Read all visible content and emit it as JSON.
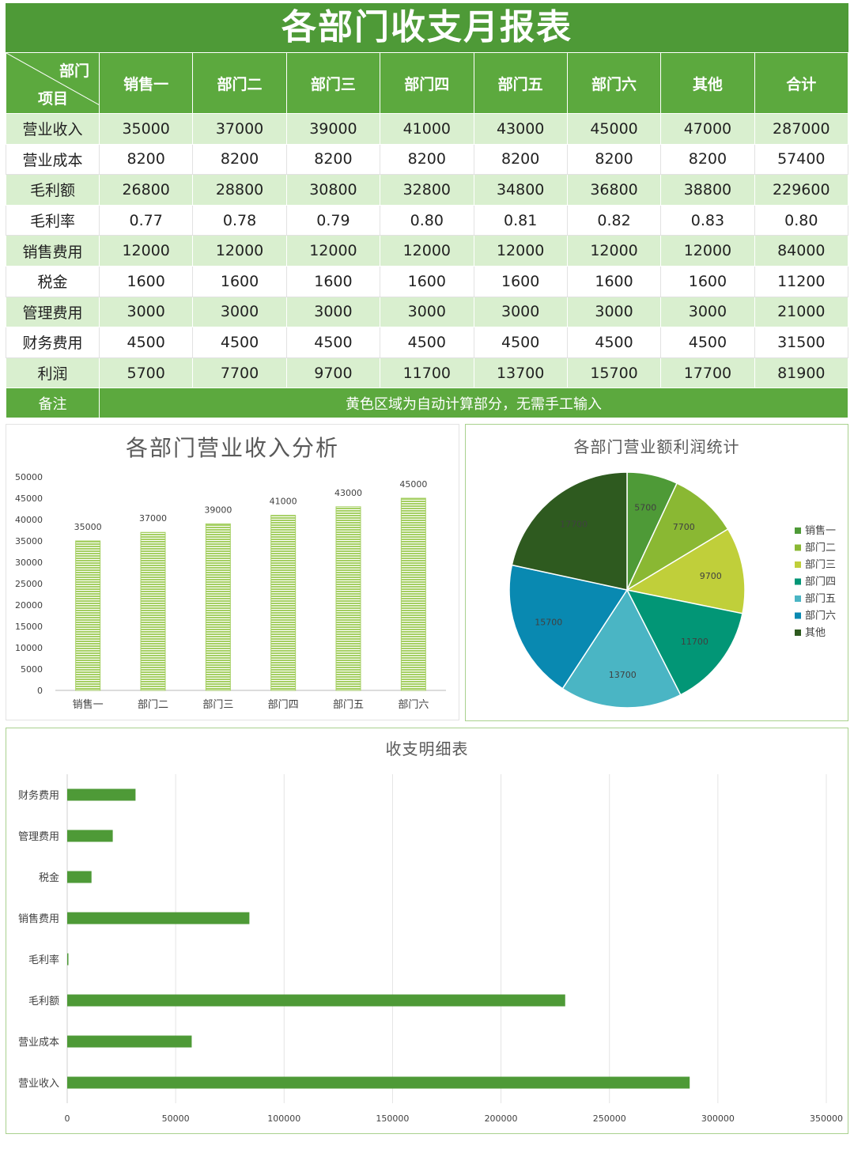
{
  "report": {
    "title": "各部门收支月报表",
    "corner_top": "部门",
    "corner_bottom": "项目",
    "columns": [
      "销售一",
      "部门二",
      "部门三",
      "部门四",
      "部门五",
      "部门六",
      "其他",
      "合计"
    ],
    "rows": [
      {
        "label": "营业收入",
        "values": [
          "35000",
          "37000",
          "39000",
          "41000",
          "43000",
          "45000",
          "47000",
          "287000"
        ]
      },
      {
        "label": "营业成本",
        "values": [
          "8200",
          "8200",
          "8200",
          "8200",
          "8200",
          "8200",
          "8200",
          "57400"
        ]
      },
      {
        "label": "毛利额",
        "values": [
          "26800",
          "28800",
          "30800",
          "32800",
          "34800",
          "36800",
          "38800",
          "229600"
        ]
      },
      {
        "label": "毛利率",
        "values": [
          "0.77",
          "0.78",
          "0.79",
          "0.80",
          "0.81",
          "0.82",
          "0.83",
          "0.80"
        ]
      },
      {
        "label": "销售费用",
        "values": [
          "12000",
          "12000",
          "12000",
          "12000",
          "12000",
          "12000",
          "12000",
          "84000"
        ]
      },
      {
        "label": "税金",
        "values": [
          "1600",
          "1600",
          "1600",
          "1600",
          "1600",
          "1600",
          "1600",
          "11200"
        ]
      },
      {
        "label": "管理费用",
        "values": [
          "3000",
          "3000",
          "3000",
          "3000",
          "3000",
          "3000",
          "3000",
          "21000"
        ]
      },
      {
        "label": "财务费用",
        "values": [
          "4500",
          "4500",
          "4500",
          "4500",
          "4500",
          "4500",
          "4500",
          "31500"
        ]
      },
      {
        "label": "利润",
        "values": [
          "5700",
          "7700",
          "9700",
          "11700",
          "13700",
          "15700",
          "17700",
          "81900"
        ]
      }
    ],
    "note_label": "备注",
    "note_text": "黄色区域为自动计算部分，无需手工输入"
  },
  "colors": {
    "header_green": "#5ca93e",
    "title_green": "#4e9a37",
    "row_tint": "#d9efcf",
    "bar_green": "#a5cf63",
    "hbar_green": "#4e9a37",
    "pie": [
      "#4e9a37",
      "#8ab833",
      "#c0cf3a",
      "#029676",
      "#4ab5c4",
      "#0989b1",
      "#2e5a1f"
    ]
  },
  "chart_data": [
    {
      "type": "bar",
      "title": "各部门营业收入分析",
      "categories": [
        "销售一",
        "部门二",
        "部门三",
        "部门四",
        "部门五",
        "部门六"
      ],
      "values": [
        35000,
        37000,
        39000,
        41000,
        43000,
        45000
      ],
      "ylim": [
        0,
        50000
      ],
      "yticks": [
        0,
        5000,
        10000,
        15000,
        20000,
        25000,
        30000,
        35000,
        40000,
        45000,
        50000
      ],
      "data_labels": true,
      "grid": false
    },
    {
      "type": "pie",
      "title": "各部门营业额利润统计",
      "categories": [
        "销售一",
        "部门二",
        "部门三",
        "部门四",
        "部门五",
        "部门六",
        "其他"
      ],
      "values": [
        5700,
        7700,
        9700,
        11700,
        13700,
        15700,
        17700
      ],
      "legend": "right",
      "data_labels": true
    },
    {
      "type": "bar",
      "orientation": "horizontal",
      "title": "收支明细表",
      "categories": [
        "财务费用",
        "管理费用",
        "税金",
        "销售费用",
        "毛利率",
        "毛利额",
        "营业成本",
        "营业收入"
      ],
      "values": [
        31500,
        21000,
        11200,
        84000,
        0.8,
        229600,
        57400,
        287000
      ],
      "xlim": [
        0,
        350000
      ],
      "xticks": [
        0,
        50000,
        100000,
        150000,
        200000,
        250000,
        300000,
        350000
      ],
      "grid": true
    }
  ]
}
